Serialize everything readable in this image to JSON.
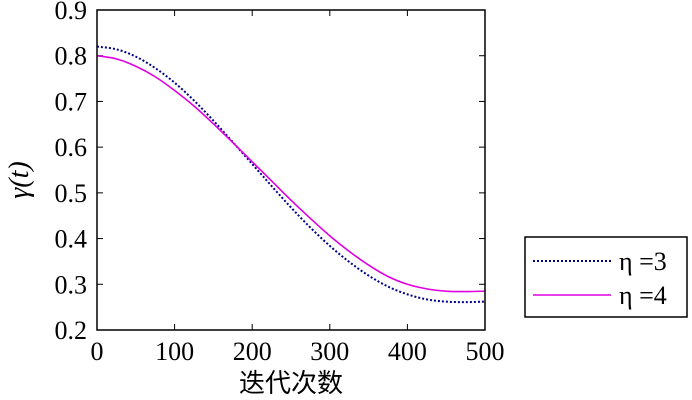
{
  "chart_data": {
    "type": "line",
    "xlabel": "迭代次数",
    "ylabel": "γ(t)",
    "xlim": [
      0,
      500
    ],
    "ylim": [
      0.2,
      0.9
    ],
    "xticks": [
      "0",
      "100",
      "200",
      "300",
      "400",
      "500"
    ],
    "yticks": [
      "0.2",
      "0.3",
      "0.4",
      "0.5",
      "0.6",
      "0.7",
      "0.8",
      "0.9"
    ],
    "grid": false,
    "legend_position": "outside-right",
    "series": [
      {
        "name": "η =3",
        "color": "#00008b",
        "style": "dotted",
        "x": [
          0,
          25,
          50,
          75,
          100,
          125,
          150,
          175,
          200,
          225,
          250,
          275,
          300,
          325,
          350,
          375,
          400,
          425,
          450,
          475,
          500
        ],
        "y": [
          0.82,
          0.814,
          0.798,
          0.773,
          0.741,
          0.702,
          0.658,
          0.611,
          0.563,
          0.515,
          0.468,
          0.424,
          0.384,
          0.349,
          0.319,
          0.295,
          0.278,
          0.267,
          0.262,
          0.261,
          0.262
        ]
      },
      {
        "name": "η =4",
        "color": "#e000e0",
        "style": "solid",
        "x": [
          0,
          25,
          50,
          75,
          100,
          125,
          150,
          175,
          200,
          225,
          250,
          275,
          300,
          325,
          350,
          375,
          400,
          425,
          450,
          475,
          500
        ],
        "y": [
          0.8,
          0.793,
          0.777,
          0.754,
          0.724,
          0.69,
          0.651,
          0.61,
          0.568,
          0.526,
          0.484,
          0.444,
          0.406,
          0.372,
          0.342,
          0.317,
          0.3,
          0.29,
          0.285,
          0.284,
          0.285
        ]
      }
    ]
  }
}
